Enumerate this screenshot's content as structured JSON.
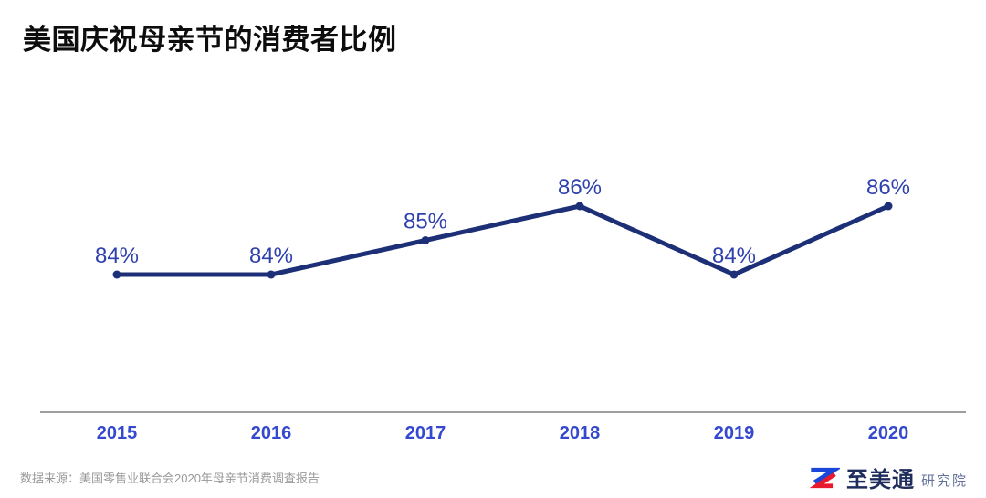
{
  "header": {
    "title": "美国庆祝母亲节的消费者比例"
  },
  "footer": {
    "source_text": "数据来源：美国零售业联合会2020年母亲节消费调查报告",
    "logo": {
      "brand": "至美通",
      "suffix": "研究院"
    }
  },
  "colors": {
    "line": "#1c2f77",
    "point": "#1c2f77",
    "data_label": "#2e41ad",
    "axis_label": "#3448d0",
    "axis_line": "#9e9e9e",
    "source_text": "#999999",
    "title_text": "#0d0d0d",
    "logo_navy": "#1d2d5c",
    "logo_blue": "#1a46d9",
    "logo_red": "#e8192c"
  },
  "chart_data": {
    "type": "line",
    "title": "美国庆祝母亲节的消费者比例",
    "categories": [
      "2015",
      "2016",
      "2017",
      "2018",
      "2019",
      "2020"
    ],
    "series": [
      {
        "name": "庆祝母亲节的消费者比例",
        "values": [
          84,
          84,
          85,
          86,
          84,
          86
        ]
      }
    ],
    "data_labels": [
      "84%",
      "84%",
      "85%",
      "86%",
      "84%",
      "86%"
    ],
    "unit": "%",
    "ylim": [
      82,
      88
    ],
    "grid": false,
    "legend": "none",
    "x_axis_line": true,
    "y_axis_visible": false
  }
}
